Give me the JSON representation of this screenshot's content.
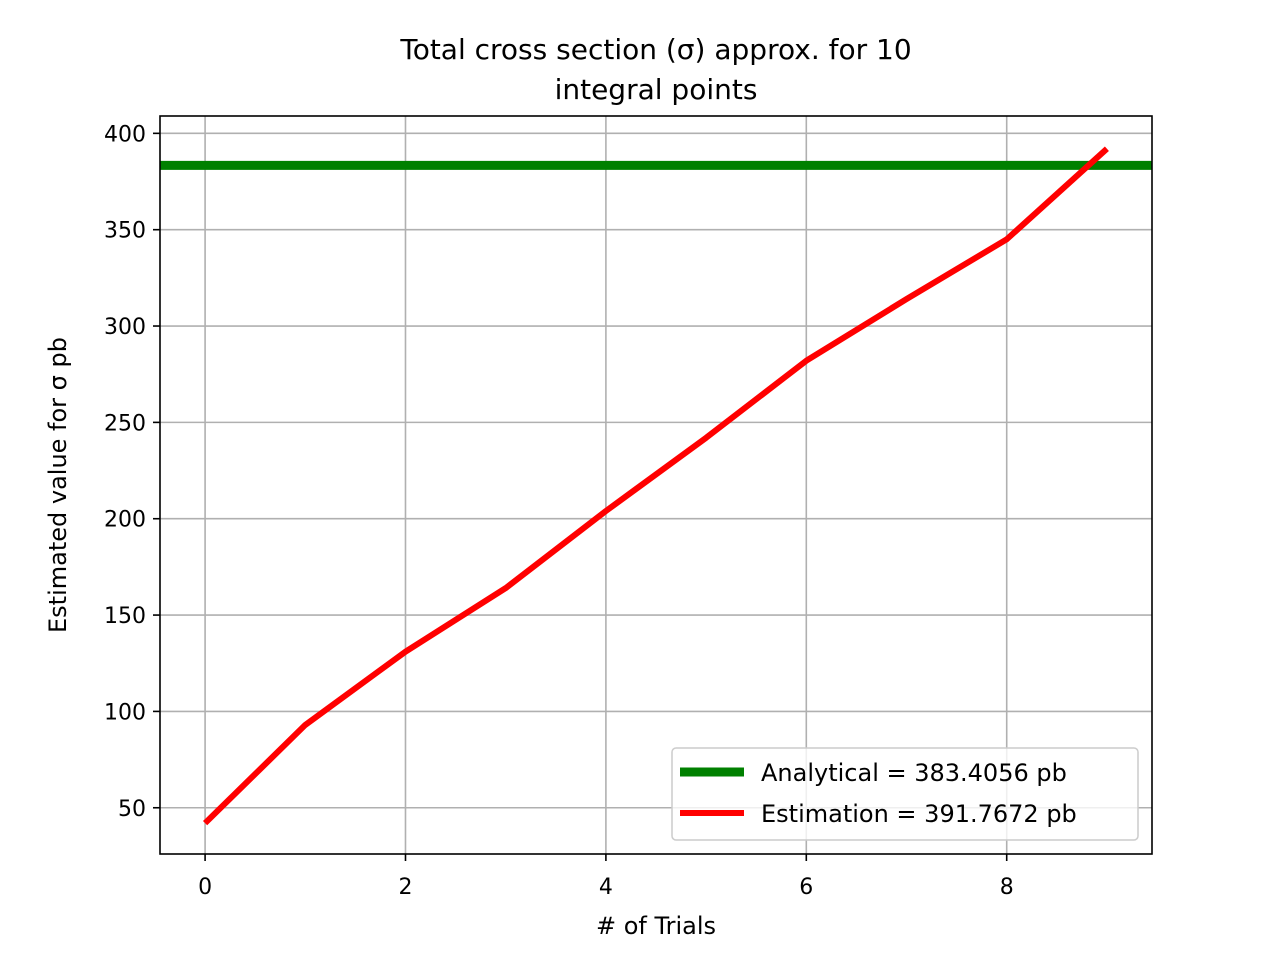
{
  "chart_data": {
    "type": "line",
    "title_line1": "Total cross section (σ) approx. for 10",
    "title_line2": "integral points",
    "xlabel": "# of Trials",
    "ylabel": "Estimated value for σ pb",
    "xlim": [
      -0.45,
      9.45
    ],
    "ylim": [
      26,
      409
    ],
    "xticks": [
      0,
      2,
      4,
      6,
      8
    ],
    "yticks": [
      50,
      100,
      150,
      200,
      250,
      300,
      350,
      400
    ],
    "grid": true,
    "legend_position": "lower-right",
    "series": [
      {
        "name": "Analytical = 383.4056 pb",
        "kind": "hline",
        "value": 383.4056,
        "color": "#008000"
      },
      {
        "name": "Estimation = 391.7672 pb",
        "kind": "line",
        "color": "#ff0000",
        "x": [
          0,
          1,
          2,
          3,
          4,
          5,
          6,
          7,
          8,
          9
        ],
        "y": [
          42,
          93,
          131,
          164,
          204,
          242,
          282,
          314,
          345,
          392
        ]
      }
    ]
  }
}
